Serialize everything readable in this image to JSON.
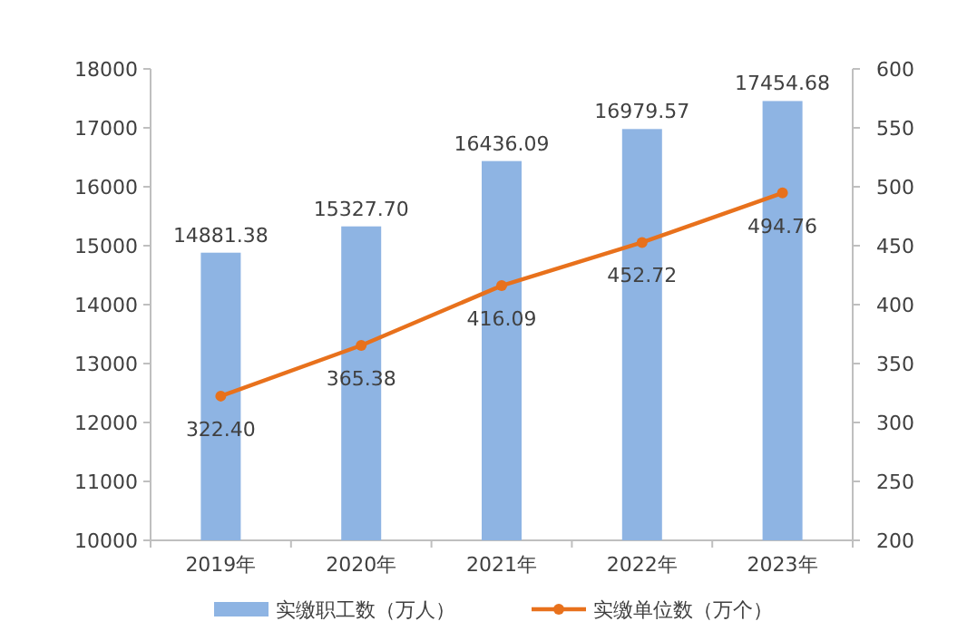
{
  "chart_data": {
    "type": "bar",
    "categories": [
      "2019年",
      "2020年",
      "2021年",
      "2022年",
      "2023年"
    ],
    "series": [
      {
        "name": "实缴职工数（万人）",
        "color": "#8eb4e3",
        "values": [
          14881.38,
          15327.7,
          16436.09,
          16979.57,
          17454.68
        ],
        "value_labels": [
          "14881.38",
          "15327.70",
          "16436.09",
          "16979.57",
          "17454.68"
        ]
      },
      {
        "name": "实缴单位数（万个）",
        "type": "line",
        "axis": "y2",
        "color": "#e8711c",
        "marker": "circle",
        "values": [
          322.4,
          365.38,
          416.09,
          452.72,
          494.76
        ],
        "value_labels": [
          "322.40",
          "365.38",
          "416.09",
          "452.72",
          "494.76"
        ]
      }
    ],
    "ylim": [
      10000,
      18000
    ],
    "yticks": [
      10000,
      11000,
      12000,
      13000,
      14000,
      15000,
      16000,
      17000,
      18000
    ],
    "y2lim": [
      200,
      600
    ],
    "y2ticks": [
      200,
      250,
      300,
      350,
      400,
      450,
      500,
      550,
      600
    ],
    "data_labels": true,
    "legend": "bottom",
    "grid": false
  }
}
